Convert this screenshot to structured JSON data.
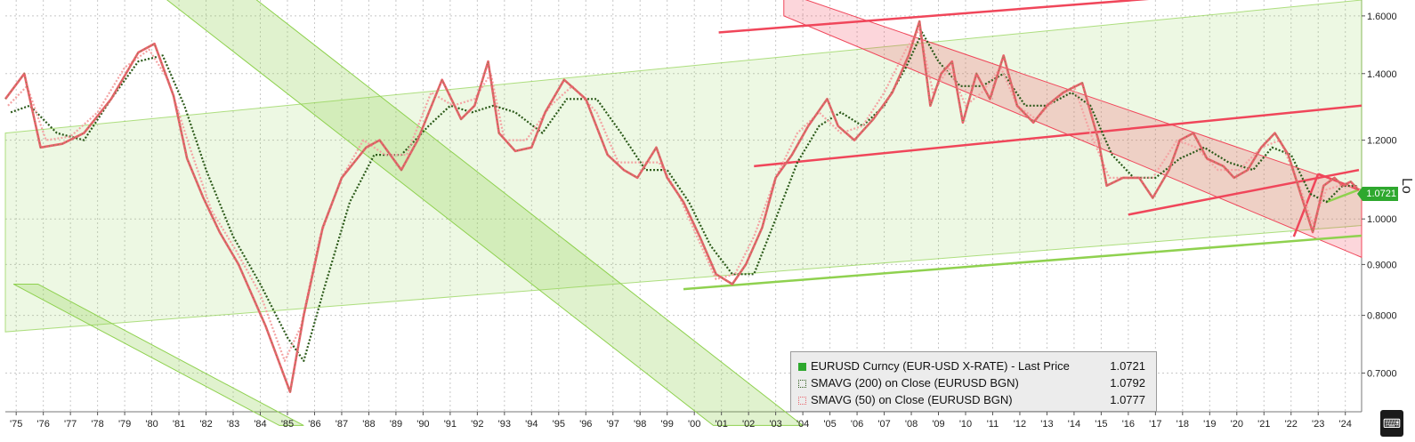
{
  "colors": {
    "price": "#e8636b",
    "sma200": "#2c5a1a",
    "sma50": "#f4a3a3",
    "green_channel": "#8fd14f",
    "red_channel": "#f0465a",
    "last_badge": "#2ea82e"
  },
  "legend": {
    "row1_label": "EURUSD Curncy (EUR-USD X-RATE) - Last Price",
    "row1_value": "1.0721",
    "row2_label": "SMAVG (200)  on Close (EURUSD BGN)",
    "row2_value": "1.0792",
    "row3_label": "SMAVG (50)  on Close (EURUSD BGN)",
    "row3_value": "1.0777"
  },
  "last_price_badge": "1.0721",
  "axis_side_text": "Lo",
  "corner_icon": "terminal-icon",
  "chart_data": {
    "type": "line",
    "title": "",
    "xlabel": "",
    "ylabel": "",
    "y_scale": "log",
    "ylim": [
      0.64,
      1.66
    ],
    "xlim": [
      1974.6,
      2024.6
    ],
    "grid": true,
    "legend_position": "bottom-center",
    "x_tick_labels": [
      "'75",
      "'76",
      "'77",
      "'78",
      "'79",
      "'80",
      "'81",
      "'82",
      "'83",
      "'84",
      "'85",
      "'86",
      "'87",
      "'88",
      "'89",
      "'90",
      "'91",
      "'92",
      "'93",
      "'94",
      "'95",
      "'96",
      "'97",
      "'98",
      "'99",
      "'00",
      "'01",
      "'02",
      "'03",
      "'04",
      "'05",
      "'06",
      "'07",
      "'08",
      "'09",
      "'10",
      "'11",
      "'12",
      "'13",
      "'14",
      "'15",
      "'16",
      "'17",
      "'18",
      "'19",
      "'20",
      "'21",
      "'22",
      "'23",
      "'24"
    ],
    "y_tick_labels": [
      "0.7000",
      "0.8000",
      "0.9000",
      "1.0000",
      "1.2000",
      "1.4000",
      "1.6000"
    ],
    "y_ticks": [
      0.7,
      0.8,
      0.9,
      1.0,
      1.2,
      1.4,
      1.6
    ],
    "series": [
      {
        "name": "EURUSD Curncy (EUR-USD X-RATE) - Last Price",
        "x": [
          1974.6,
          1975.3,
          1975.9,
          1976.7,
          1977.5,
          1978.5,
          1979.5,
          1980.1,
          1980.8,
          1981.3,
          1981.9,
          1982.5,
          1983.2,
          1984.2,
          1985.1,
          1985.6,
          1986.3,
          1987.0,
          1987.9,
          1988.4,
          1989.2,
          1989.8,
          1990.7,
          1991.4,
          1991.9,
          1992.4,
          1992.8,
          1993.4,
          1994.0,
          1994.5,
          1995.2,
          1996.0,
          1996.8,
          1997.4,
          1997.9,
          1998.6,
          1999.0,
          1999.6,
          2000.2,
          2000.8,
          2001.4,
          2001.9,
          2002.5,
          2003.0,
          2003.6,
          2004.2,
          2004.9,
          2005.3,
          2005.9,
          2006.6,
          2007.3,
          2007.9,
          2008.3,
          2008.7,
          2009.1,
          2009.5,
          2009.9,
          2010.4,
          2010.9,
          2011.4,
          2011.9,
          2012.5,
          2013.0,
          2013.6,
          2014.3,
          2014.9,
          2015.2,
          2015.8,
          2016.4,
          2016.9,
          2017.5,
          2017.9,
          2018.4,
          2018.9,
          2019.5,
          2019.9,
          2020.4,
          2020.9,
          2021.4,
          2021.9,
          2022.4,
          2022.8,
          2023.2,
          2023.6,
          2023.9,
          2024.2,
          2024.45
        ],
        "y": [
          1.32,
          1.4,
          1.18,
          1.19,
          1.22,
          1.32,
          1.47,
          1.5,
          1.33,
          1.15,
          1.05,
          0.97,
          0.9,
          0.78,
          0.67,
          0.8,
          0.98,
          1.1,
          1.18,
          1.2,
          1.12,
          1.2,
          1.38,
          1.26,
          1.3,
          1.44,
          1.22,
          1.17,
          1.18,
          1.28,
          1.38,
          1.32,
          1.16,
          1.12,
          1.1,
          1.18,
          1.1,
          1.04,
          0.96,
          0.88,
          0.86,
          0.9,
          0.98,
          1.1,
          1.16,
          1.24,
          1.32,
          1.24,
          1.2,
          1.26,
          1.34,
          1.46,
          1.58,
          1.3,
          1.4,
          1.44,
          1.25,
          1.4,
          1.32,
          1.46,
          1.3,
          1.25,
          1.3,
          1.34,
          1.37,
          1.2,
          1.08,
          1.1,
          1.1,
          1.05,
          1.12,
          1.2,
          1.22,
          1.15,
          1.13,
          1.1,
          1.12,
          1.18,
          1.22,
          1.16,
          1.05,
          0.97,
          1.08,
          1.1,
          1.08,
          1.09,
          1.0721
        ]
      },
      {
        "name": "SMAVG (200)  on Close (EURUSD BGN)",
        "x": [
          1974.8,
          1975.5,
          1976.5,
          1977.5,
          1978.5,
          1979.5,
          1980.4,
          1981.2,
          1982.0,
          1983.0,
          1984.0,
          1985.0,
          1985.6,
          1986.4,
          1987.3,
          1988.2,
          1989.2,
          1990.2,
          1991.0,
          1991.8,
          1992.6,
          1993.4,
          1994.4,
          1995.3,
          1996.4,
          1997.3,
          1998.2,
          1999.0,
          1999.8,
          2000.6,
          2001.4,
          2002.2,
          2003.0,
          2003.8,
          2004.6,
          2005.4,
          2006.2,
          2007.0,
          2007.8,
          2008.4,
          2009.0,
          2009.8,
          2010.6,
          2011.4,
          2012.2,
          2013.0,
          2013.9,
          2014.6,
          2015.4,
          2016.2,
          2017.0,
          2017.9,
          2018.8,
          2019.7,
          2020.6,
          2021.3,
          2022.0,
          2022.7,
          2023.3,
          2023.9,
          2024.45
        ],
        "y": [
          1.28,
          1.3,
          1.22,
          1.2,
          1.32,
          1.44,
          1.46,
          1.3,
          1.12,
          0.96,
          0.86,
          0.76,
          0.72,
          0.86,
          1.04,
          1.16,
          1.16,
          1.24,
          1.3,
          1.28,
          1.3,
          1.28,
          1.22,
          1.32,
          1.32,
          1.22,
          1.12,
          1.12,
          1.04,
          0.94,
          0.88,
          0.88,
          1.0,
          1.14,
          1.24,
          1.28,
          1.24,
          1.3,
          1.42,
          1.54,
          1.44,
          1.36,
          1.36,
          1.4,
          1.3,
          1.3,
          1.34,
          1.3,
          1.16,
          1.1,
          1.1,
          1.15,
          1.18,
          1.14,
          1.12,
          1.18,
          1.16,
          1.06,
          1.04,
          1.08,
          1.0792
        ]
      },
      {
        "name": "SMAVG (50)  on Close (EURUSD BGN)",
        "x": [
          1974.7,
          1975.4,
          1976.1,
          1977.0,
          1978.0,
          1979.0,
          1979.9,
          1980.6,
          1981.4,
          1982.2,
          1983.1,
          1984.0,
          1984.9,
          1985.5,
          1986.2,
          1987.0,
          1987.8,
          1988.6,
          1989.4,
          1990.3,
          1991.1,
          1991.9,
          1992.5,
          1993.0,
          1993.8,
          1994.7,
          1995.5,
          1996.4,
          1997.2,
          1998.0,
          1998.7,
          1999.4,
          2000.1,
          2000.8,
          2001.5,
          2002.2,
          2003.0,
          2003.8,
          2004.6,
          2005.4,
          2006.2,
          2007.0,
          2007.8,
          2008.3,
          2008.8,
          2009.4,
          2010.0,
          2010.6,
          2011.3,
          2011.9,
          2012.6,
          2013.3,
          2014.0,
          2014.6,
          2015.3,
          2016.1,
          2016.9,
          2017.8,
          2018.5,
          2019.3,
          2020.1,
          2020.9,
          2021.6,
          2022.3,
          2022.8,
          2023.3,
          2023.8,
          2024.45
        ],
        "y": [
          1.3,
          1.36,
          1.2,
          1.21,
          1.28,
          1.42,
          1.48,
          1.38,
          1.18,
          1.02,
          0.93,
          0.84,
          0.72,
          0.78,
          0.96,
          1.1,
          1.2,
          1.16,
          1.16,
          1.34,
          1.3,
          1.32,
          1.4,
          1.2,
          1.2,
          1.3,
          1.36,
          1.28,
          1.14,
          1.14,
          1.14,
          1.06,
          0.96,
          0.87,
          0.88,
          0.96,
          1.1,
          1.22,
          1.28,
          1.22,
          1.24,
          1.34,
          1.48,
          1.55,
          1.34,
          1.42,
          1.3,
          1.34,
          1.42,
          1.3,
          1.26,
          1.32,
          1.36,
          1.22,
          1.1,
          1.1,
          1.1,
          1.2,
          1.18,
          1.12,
          1.12,
          1.18,
          1.2,
          1.08,
          0.99,
          1.07,
          1.08,
          1.0777
        ]
      }
    ],
    "annotations": [
      {
        "type": "green_band",
        "from": [
          1975.8,
          0.86
        ],
        "to": [
          1985.6,
          0.62
        ],
        "offset": -0.9
      },
      {
        "type": "green_band",
        "from": [
          1983.5,
          1.69
        ],
        "to": [
          2004.0,
          0.62
        ],
        "offset": -3.3
      },
      {
        "type": "green_band_long",
        "from": [
          1974.6,
          1.22
        ],
        "to": [
          2024.6,
          1.66
        ],
        "lower_from": [
          1974.6,
          0.77
        ],
        "lower_to": [
          2024.6,
          0.985
        ]
      },
      {
        "type": "red_band",
        "from": [
          2003.3,
          1.69
        ],
        "to": [
          2024.6,
          1.07
        ],
        "lower_from": [
          2003.3,
          1.6
        ],
        "lower_to": [
          2024.6,
          0.915
        ]
      },
      {
        "type": "line",
        "color": "red",
        "from": [
          2000.9,
          1.54
        ],
        "to": [
          2019.9,
          1.69
        ]
      },
      {
        "type": "line",
        "color": "red",
        "from": [
          2002.2,
          1.13
        ],
        "to": [
          2024.6,
          1.3
        ]
      },
      {
        "type": "line",
        "color": "red",
        "from": [
          2016.0,
          1.01
        ],
        "to": [
          2024.5,
          1.12
        ]
      },
      {
        "type": "line",
        "color": "green",
        "from": [
          1999.6,
          0.85
        ],
        "to": [
          2024.6,
          0.962
        ]
      },
      {
        "type": "line",
        "color": "green",
        "from": [
          2023.3,
          1.04
        ],
        "to": [
          2024.5,
          1.07
        ]
      },
      {
        "type": "line",
        "color": "red",
        "from": [
          2022.1,
          0.96
        ],
        "to": [
          2023.0,
          1.11
        ]
      },
      {
        "type": "line",
        "color": "red",
        "from": [
          2023.0,
          1.11
        ],
        "to": [
          2024.5,
          1.07
        ]
      }
    ]
  }
}
